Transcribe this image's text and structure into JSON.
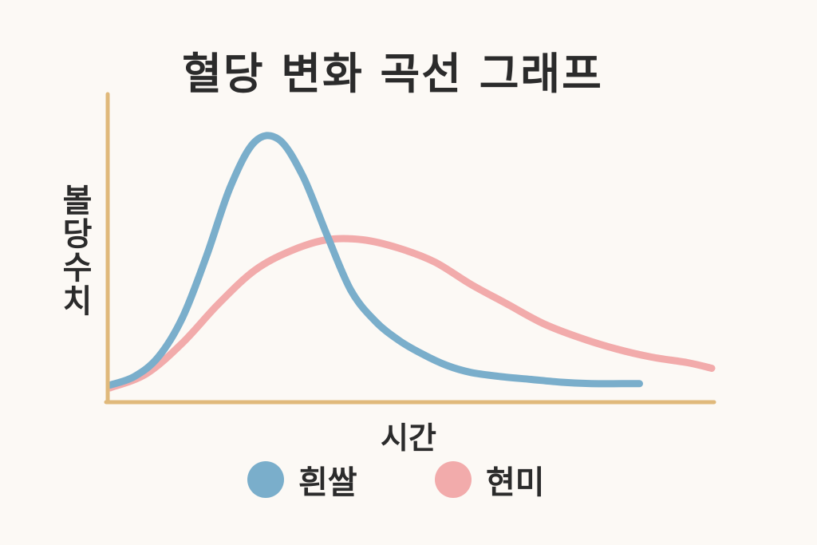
{
  "chart_data": {
    "type": "line",
    "title": "혈당 변화 곡선 그래프",
    "xlabel": "시간",
    "ylabel": "볼당수치",
    "xlim": [
      0,
      10
    ],
    "ylim": [
      0,
      10
    ],
    "grid": false,
    "legend_position": "bottom",
    "axis_color": "#e0b97b",
    "series": [
      {
        "name": "흰쌀",
        "color": "#7aaecb",
        "x": [
          0,
          0.4,
          0.8,
          1.2,
          1.6,
          2.0,
          2.4,
          2.8,
          3.2,
          3.6,
          4.0,
          4.4,
          4.8,
          5.2,
          5.6,
          6.0,
          6.5,
          7.0,
          7.5,
          8.0,
          8.5,
          8.8
        ],
        "y": [
          0.5,
          0.8,
          1.5,
          2.9,
          5.1,
          7.6,
          9.2,
          9.3,
          8.0,
          5.9,
          3.9,
          2.8,
          2.1,
          1.6,
          1.2,
          0.95,
          0.8,
          0.7,
          0.6,
          0.55,
          0.55,
          0.55
        ]
      },
      {
        "name": "현미",
        "color": "#f2abab",
        "x": [
          0,
          0.6,
          1.2,
          1.8,
          2.4,
          3.0,
          3.6,
          4.2,
          4.8,
          5.4,
          6.0,
          6.6,
          7.2,
          7.8,
          8.4,
          9.0,
          9.6,
          10.0
        ],
        "y": [
          0.4,
          0.9,
          2.0,
          3.4,
          4.6,
          5.3,
          5.7,
          5.7,
          5.4,
          4.9,
          4.1,
          3.4,
          2.7,
          2.2,
          1.8,
          1.5,
          1.3,
          1.1
        ]
      }
    ]
  }
}
